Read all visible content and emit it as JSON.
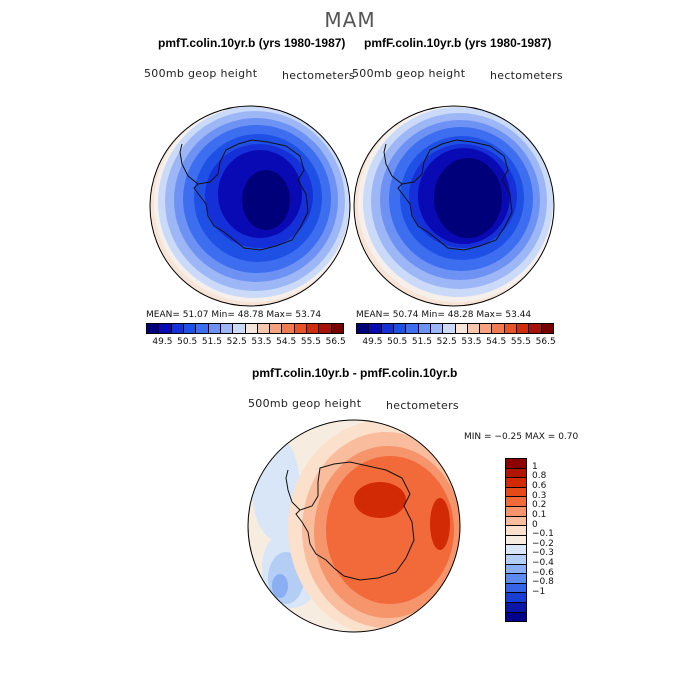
{
  "figure": {
    "title": "MAM",
    "subtitle_diff": "pmfT.colin.10yr.b - pmfF.colin.10yr.b"
  },
  "panel_left": {
    "title": "pmfT.colin.10yr.b (yrs 1980-1987)",
    "left_label": "500mb geop height",
    "right_label": "hectometers",
    "stats": "MEAN=   51.07   Min=   48.78    Max=   53.74",
    "colorbar_ticks": [
      "49.5",
      "50.5",
      "51.5",
      "52.5",
      "53.5",
      "54.5",
      "55.5",
      "56.5"
    ]
  },
  "panel_right": {
    "title": "pmfF.colin.10yr.b (yrs 1980-1987)",
    "left_label": "500mb geop height",
    "right_label": "hectometers",
    "stats": "MEAN=   50.74   Min=   48.28    Max=   53.44",
    "colorbar_ticks": [
      "49.5",
      "50.5",
      "51.5",
      "52.5",
      "53.5",
      "54.5",
      "55.5",
      "56.5"
    ]
  },
  "panel_diff": {
    "left_label": "500mb geop height",
    "right_label": "hectometers",
    "minmax": "MIN =   −0.25  MAX =    0.70",
    "colorbar_ticks": [
      "1",
      "0.8",
      "0.6",
      "0.3",
      "0.2",
      "0.1",
      "0",
      "−0.1",
      "−0.2",
      "−0.3",
      "−0.4",
      "−0.6",
      "−0.8",
      "−1"
    ]
  },
  "colors": {
    "abs_scale": [
      "#00007a",
      "#0a0ab4",
      "#1530d8",
      "#1f50e6",
      "#3d6ef0",
      "#6e92f4",
      "#9db7f6",
      "#cadaf8",
      "#f6e6da",
      "#f9c6ac",
      "#f6a27e",
      "#f07a52",
      "#e6542a",
      "#d02c10",
      "#a8100a",
      "#7a0000"
    ],
    "diff_scale": [
      "#8c0000",
      "#b01500",
      "#d22a05",
      "#e64a18",
      "#f26a3a",
      "#f6946c",
      "#f9bc9c",
      "#fbe0cc",
      "#f7ece0",
      "#d8e6f8",
      "#b4cdf5",
      "#8aaef2",
      "#5c8aef",
      "#3564e6",
      "#1a3ed4",
      "#0a16a6",
      "#00008c"
    ]
  }
}
